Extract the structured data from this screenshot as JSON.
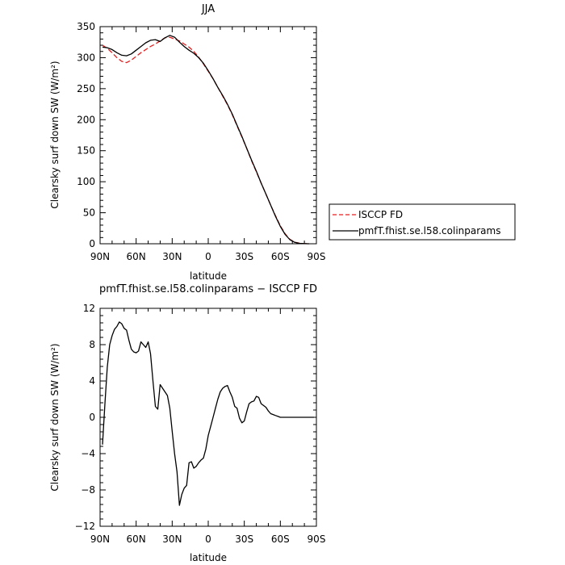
{
  "chart_data": [
    {
      "type": "line",
      "title": "JJA",
      "xlabel": "latitude",
      "ylabel": "Clearsky surf down SW (W/m²)",
      "x_ticks": [
        {
          "value": 90,
          "label": "90N"
        },
        {
          "value": 60,
          "label": "60N"
        },
        {
          "value": 30,
          "label": "30N"
        },
        {
          "value": 0,
          "label": "0"
        },
        {
          "value": -30,
          "label": "30S"
        },
        {
          "value": -60,
          "label": "60S"
        },
        {
          "value": -90,
          "label": "90S"
        }
      ],
      "xlim": [
        90,
        -90
      ],
      "ylim": [
        0,
        350
      ],
      "y_ticks": [
        0,
        50,
        100,
        150,
        200,
        250,
        300,
        350
      ],
      "grid": false,
      "legend": "right",
      "series": [
        {
          "name": "ISCCP FD",
          "color": "#e02020",
          "dash": "dashed",
          "x": [
            88,
            84,
            80,
            76,
            72,
            68,
            64,
            60,
            56,
            52,
            48,
            44,
            40,
            36,
            32,
            28,
            24,
            20,
            16,
            12,
            8,
            4,
            0,
            -4,
            -8,
            -12,
            -16,
            -20,
            -24,
            -28,
            -32,
            -36,
            -40,
            -44,
            -48,
            -52,
            -56,
            -60,
            -64,
            -68,
            -72,
            -76,
            -80,
            -84
          ],
          "y": [
            320,
            315,
            308,
            300,
            294,
            292,
            296,
            302,
            308,
            313,
            318,
            322,
            327,
            332,
            333,
            330,
            327,
            322,
            317,
            310,
            301,
            290,
            278,
            266,
            252,
            238,
            224,
            208,
            190,
            172,
            154,
            134,
            116,
            98,
            80,
            62,
            45,
            29,
            16,
            7,
            2.5,
            0.8,
            0.2,
            0
          ]
        },
        {
          "name": "pmfT.fhist.se.l58.colinparams",
          "color": "#000000",
          "dash": "solid",
          "x": [
            88,
            84,
            80,
            76,
            72,
            68,
            64,
            60,
            56,
            52,
            48,
            44,
            40,
            36,
            32,
            28,
            24,
            20,
            16,
            12,
            8,
            4,
            0,
            -4,
            -8,
            -12,
            -16,
            -20,
            -24,
            -28,
            -32,
            -36,
            -40,
            -44,
            -48,
            -52,
            -56,
            -60,
            -64,
            -68,
            -72,
            -76,
            -80,
            -84
          ],
          "y": [
            317,
            316,
            313,
            308,
            304,
            303,
            306,
            312,
            318,
            324,
            328,
            329,
            326,
            332,
            336,
            333,
            325,
            318,
            312,
            307,
            300,
            291,
            279,
            266,
            252,
            239,
            225,
            209,
            191,
            173,
            154,
            135,
            117,
            98,
            80,
            62,
            44,
            28,
            15,
            6.5,
            2.2,
            0.7,
            0.2,
            0
          ]
        }
      ]
    },
    {
      "type": "line",
      "title": "pmfT.fhist.se.l58.colinparams − ISCCP FD",
      "xlabel": "latitude",
      "ylabel": "Clearsky surf down SW (W/m²)",
      "x_ticks": [
        {
          "value": 90,
          "label": "90N"
        },
        {
          "value": 60,
          "label": "60N"
        },
        {
          "value": 30,
          "label": "30N"
        },
        {
          "value": 0,
          "label": "0"
        },
        {
          "value": -30,
          "label": "30S"
        },
        {
          "value": -60,
          "label": "60S"
        },
        {
          "value": -90,
          "label": "90S"
        }
      ],
      "xlim": [
        90,
        -90
      ],
      "ylim": [
        -12,
        12
      ],
      "y_ticks": [
        -12,
        -8,
        -4,
        0,
        4,
        8,
        12
      ],
      "y_tick_labels": [
        "−12",
        "−8",
        "−4",
        "0",
        "4",
        "8",
        "12"
      ],
      "grid": false,
      "series": [
        {
          "color": "#000000",
          "dash": "solid",
          "x": [
            88,
            86,
            84,
            82,
            80,
            78,
            76,
            74,
            72,
            70,
            68,
            66,
            64,
            62,
            60,
            58,
            56,
            54,
            52,
            50,
            48,
            46,
            44,
            42,
            40,
            38,
            36,
            34,
            32,
            30,
            28,
            26,
            24,
            22,
            20,
            18,
            16,
            14,
            12,
            10,
            8,
            6,
            4,
            2,
            0,
            -2,
            -4,
            -6,
            -8,
            -10,
            -12,
            -14,
            -16,
            -18,
            -20,
            -22,
            -24,
            -26,
            -28,
            -30,
            -32,
            -34,
            -36,
            -38,
            -40,
            -42,
            -44,
            -46,
            -48,
            -50,
            -52,
            -54,
            -56,
            -58,
            -60,
            -62,
            -64,
            -66,
            -68,
            -70,
            -72,
            -74,
            -76,
            -78,
            -80,
            -82,
            -84,
            -86,
            -88
          ],
          "y": [
            -3,
            1.5,
            5.5,
            8,
            9,
            9.7,
            10,
            10.5,
            10.3,
            9.8,
            9.6,
            8.5,
            7.5,
            7.2,
            7.1,
            7.3,
            8.3,
            8,
            7.7,
            8.3,
            7,
            4,
            1.2,
            0.9,
            3.6,
            3.2,
            2.8,
            2.4,
            1,
            -1.5,
            -4,
            -6,
            -9.7,
            -8.5,
            -7.8,
            -7.5,
            -5,
            -4.9,
            -5.6,
            -5.4,
            -5,
            -4.7,
            -4.5,
            -3.5,
            -2,
            -1,
            0,
            1,
            2,
            2.8,
            3.2,
            3.4,
            3.5,
            2.8,
            2.2,
            1.2,
            1,
            -0.1,
            -0.6,
            -0.4,
            0.6,
            1.5,
            1.7,
            1.8,
            2.3,
            2.2,
            1.5,
            1.3,
            1.1,
            0.7,
            0.4,
            0.3,
            0.2,
            0.1,
            0,
            0,
            0,
            0,
            0,
            0,
            0,
            0,
            0,
            0,
            0,
            0,
            0,
            0,
            0
          ]
        }
      ]
    }
  ]
}
